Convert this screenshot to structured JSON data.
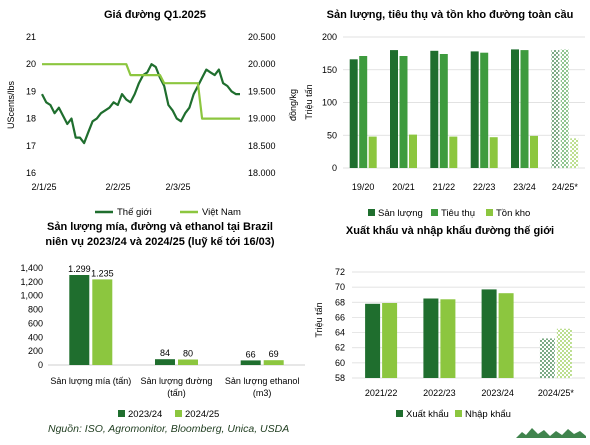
{
  "colors": {
    "dark_green": "#1f6e2e",
    "light_green": "#8cc63f",
    "grid": "#d9d9d9"
  },
  "source": "Nguồn: ISO, Agromonitor, Bloomberg, Unica, USDA",
  "chart_data": [
    {
      "id": "price",
      "type": "line",
      "title": "Giá đường Q1.2025",
      "y_left": {
        "label": "UScents/lbs",
        "ticks": [
          "16",
          "17",
          "18",
          "19",
          "20",
          "21"
        ],
        "range": [
          16,
          21
        ]
      },
      "y_right": {
        "label": "đồng/kg",
        "ticks": [
          "18.000",
          "18.500",
          "19.000",
          "19.500",
          "20.000",
          "20.500"
        ],
        "range": [
          18000,
          20500
        ]
      },
      "x_ticks": [
        "2/1/25",
        "2/2/25",
        "2/3/25"
      ],
      "series": [
        {
          "name": "Thế giới",
          "axis": "left",
          "color": "#1f6e2e",
          "values": [
            18.9,
            18.6,
            18.5,
            18.2,
            18.4,
            18.1,
            17.8,
            18.0,
            17.3,
            17.3,
            17.1,
            17.5,
            17.9,
            18.0,
            18.2,
            18.3,
            18.4,
            18.6,
            18.5,
            18.9,
            18.7,
            18.6,
            18.9,
            19.3,
            19.6,
            19.7,
            20.0,
            19.9,
            19.5,
            19.2,
            18.5,
            18.3,
            18.0,
            17.9,
            18.2,
            18.4,
            18.9,
            19.2,
            19.5,
            19.8,
            19.7,
            19.6,
            19.8,
            19.3,
            19.2,
            19.0,
            18.9,
            18.9
          ]
        },
        {
          "name": "Việt Nam",
          "axis": "right",
          "color": "#8cc63f",
          "values": [
            20000,
            20000,
            20000,
            20000,
            20000,
            20000,
            20000,
            20000,
            20000,
            20000,
            20000,
            20000,
            20000,
            20000,
            20000,
            20000,
            20000,
            20000,
            20000,
            20000,
            20000,
            19800,
            19800,
            19800,
            19800,
            19800,
            19800,
            19800,
            19800,
            19650,
            19650,
            19650,
            19650,
            19650,
            19650,
            19650,
            19650,
            19650,
            19000,
            19000,
            19000,
            19000,
            19000,
            19000,
            19000,
            19000,
            19000,
            19000
          ]
        }
      ]
    },
    {
      "id": "global",
      "type": "bar",
      "title": "Sản lượng, tiêu thụ và tồn kho đường toàn cầu",
      "ylabel": "Triệu tấn",
      "y_ticks": [
        "0",
        "50",
        "100",
        "150",
        "200"
      ],
      "ylim": [
        0,
        200
      ],
      "categories": [
        "19/20",
        "20/21",
        "21/22",
        "22/23",
        "23/24",
        "24/25*"
      ],
      "forecast_category": "24/25*",
      "series": [
        {
          "name": "Sản lượng",
          "color": "#1f6e2e",
          "values": [
            166,
            180,
            179,
            178,
            181,
            180
          ]
        },
        {
          "name": "Tiêu thụ",
          "color": "#3e9b3e",
          "values": [
            171,
            171,
            174,
            176,
            180,
            181
          ]
        },
        {
          "name": "Tồn kho",
          "color": "#8cc63f",
          "values": [
            48,
            51,
            48,
            47,
            49,
            45
          ]
        }
      ]
    },
    {
      "id": "brazil",
      "type": "bar",
      "title_lines": [
        "Sản lượng mía, đường và ethanol tại Brazil",
        "niên vụ 2023/24 và 2024/25 (luỹ kế tới 16/03)"
      ],
      "y_ticks": [
        "0",
        "200",
        "400",
        "600",
        "800",
        "1,000",
        "1,200",
        "1,400"
      ],
      "ylim": [
        0,
        1400
      ],
      "categories": [
        [
          "Sản lượng mía (tấn)"
        ],
        [
          "Sản lượng đường",
          "(tấn)"
        ],
        [
          "Sản lượng ethanol",
          "(m3)"
        ]
      ],
      "series": [
        {
          "name": "2023/24",
          "color": "#1f6e2e",
          "values": [
            1299,
            84,
            66
          ],
          "labels": [
            "1.299",
            "84",
            "66"
          ]
        },
        {
          "name": "2024/25",
          "color": "#8cc63f",
          "values": [
            1235,
            80,
            69
          ],
          "labels": [
            "1.235",
            "80",
            "69"
          ]
        }
      ]
    },
    {
      "id": "trade",
      "type": "bar",
      "title": "Xuất khẩu và nhập khẩu đường thế giới",
      "ylabel": "Triệu tấn",
      "y_ticks": [
        "58",
        "60",
        "62",
        "64",
        "66",
        "68",
        "70",
        "72"
      ],
      "ylim": [
        58,
        72
      ],
      "categories": [
        "2021/22",
        "2022/23",
        "2023/24",
        "2024/25*"
      ],
      "forecast_category": "2024/25*",
      "series": [
        {
          "name": "Xuất khẩu",
          "color": "#1f6e2e",
          "values": [
            67.8,
            68.5,
            69.7,
            63.2
          ]
        },
        {
          "name": "Nhập khẩu",
          "color": "#8cc63f",
          "values": [
            67.9,
            68.4,
            69.2,
            64.5
          ]
        }
      ]
    }
  ]
}
